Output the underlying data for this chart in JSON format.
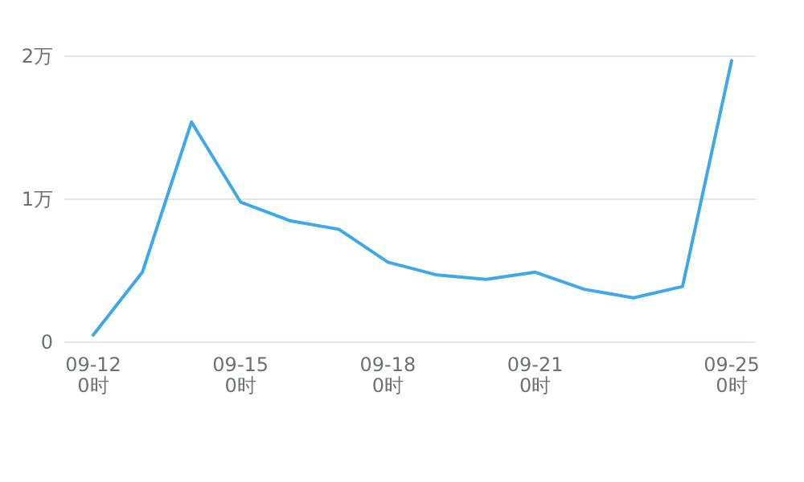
{
  "chart_data": {
    "type": "line",
    "categories": [
      "09-12 0时",
      null,
      null,
      "09-15 0时",
      null,
      null,
      "09-18 0时",
      null,
      null,
      "09-21 0时",
      null,
      null,
      null,
      "09-25 0时"
    ],
    "series": [
      {
        "color": "#3ea8e9",
        "values": [
          0.05,
          0.49,
          1.54,
          0.98,
          0.85,
          0.79,
          0.56,
          0.47,
          0.44,
          0.49,
          0.37,
          0.31,
          0.39,
          1.97
        ]
      }
    ],
    "ylim": [
      0,
      2
    ],
    "yticks": [
      0,
      {
        "value": 1,
        "label": "1万"
      },
      {
        "value": 2,
        "label": "2万"
      }
    ],
    "grid": "y",
    "marker": "none",
    "line_style": "solid"
  }
}
